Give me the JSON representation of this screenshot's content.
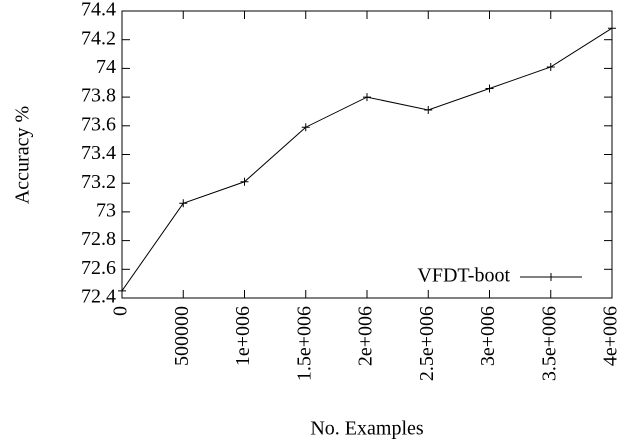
{
  "chart_data": {
    "type": "line",
    "xlabel": "No. Examples",
    "ylabel": "Accuracy %",
    "x": [
      0,
      500000,
      1000000,
      1500000,
      2000000,
      2500000,
      3000000,
      3500000,
      4000000
    ],
    "series": [
      {
        "name": "VFDT-boot",
        "color": "#000000",
        "values": [
          72.45,
          73.06,
          73.21,
          73.59,
          73.8,
          73.71,
          73.86,
          74.01,
          74.28
        ]
      }
    ],
    "xlim": [
      0,
      4000000
    ],
    "xticks": [
      0,
      500000,
      {
        "value": 1000000,
        "label": "1e+006"
      },
      {
        "value": 1500000,
        "label": "1.5e+006"
      },
      {
        "value": 2000000,
        "label": "2e+006"
      },
      {
        "value": 2500000,
        "label": "2.5e+006"
      },
      {
        "value": 3000000,
        "label": "3e+006"
      },
      {
        "value": 3500000,
        "label": "3.5e+006"
      },
      {
        "value": 4000000,
        "label": "4e+006"
      }
    ],
    "ylim": [
      72.4,
      74.4
    ],
    "yticks": [
      72.4,
      72.6,
      72.8,
      73,
      73.2,
      73.4,
      73.6,
      73.8,
      74,
      74.2,
      74.4
    ],
    "legend": "bottom right",
    "grid": false
  }
}
